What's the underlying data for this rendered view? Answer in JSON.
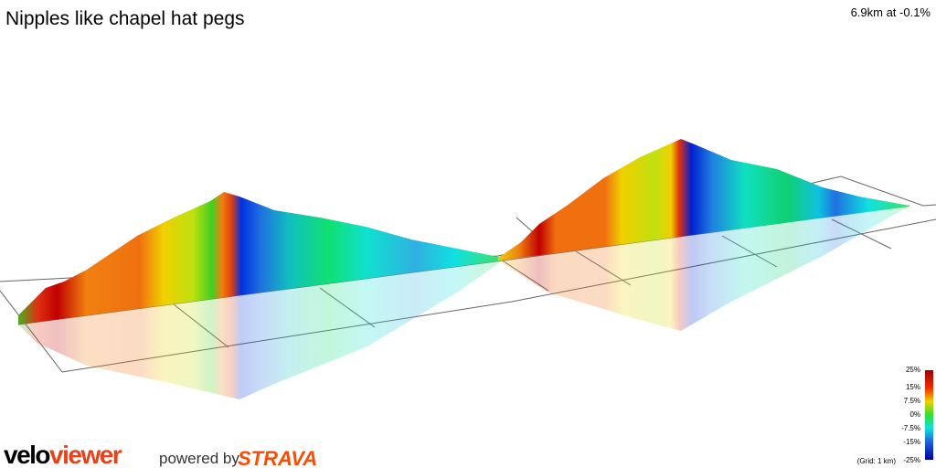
{
  "header": {
    "title": "Nipples like chapel hat pegs",
    "summary": "6.9km at -0.1%"
  },
  "legend": {
    "labels": [
      "25%",
      "15%",
      "7.5%",
      "0%",
      "-7.5%",
      "-15%",
      "-25%"
    ],
    "grid_note": "(Grid: 1 km)"
  },
  "footer": {
    "brand_velo": "velo",
    "brand_viewer": "viewer",
    "powered_by": "powered by",
    "strava": "STRAVA"
  }
}
